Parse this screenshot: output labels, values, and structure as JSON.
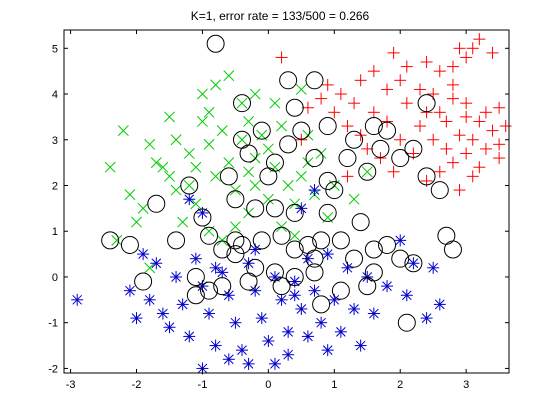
{
  "chart_data": {
    "type": "scatter",
    "title": "K=1, error rate = 133/500 = 0.266",
    "xlabel": "",
    "ylabel": "",
    "xlim": [
      -3.1,
      3.65
    ],
    "ylim": [
      -2.1,
      5.4
    ],
    "xticks": [
      -3,
      -2,
      -1,
      0,
      1,
      2,
      3
    ],
    "yticks": [
      -2,
      -1,
      0,
      1,
      2,
      3,
      4,
      5
    ],
    "grid": false,
    "legend": "none",
    "series": [
      {
        "marker": "plus",
        "color": "#ff0000",
        "points": [
          [
            0.2,
            4.8
          ],
          [
            0.9,
            4.2
          ],
          [
            1.4,
            4.3
          ],
          [
            1.6,
            4.5
          ],
          [
            1.8,
            4.1
          ],
          [
            2.0,
            4.3
          ],
          [
            2.1,
            3.8
          ],
          [
            2.3,
            4.1
          ],
          [
            2.4,
            3.6
          ],
          [
            2.5,
            4.0
          ],
          [
            2.6,
            3.6
          ],
          [
            2.7,
            3.4
          ],
          [
            2.8,
            3.9
          ],
          [
            2.9,
            3.1
          ],
          [
            3.0,
            3.5
          ],
          [
            3.1,
            3.0
          ],
          [
            3.2,
            3.4
          ],
          [
            3.3,
            2.8
          ],
          [
            3.4,
            3.2
          ],
          [
            3.5,
            2.9
          ],
          [
            3.6,
            3.3
          ],
          [
            3.5,
            2.6
          ],
          [
            3.2,
            2.4
          ],
          [
            3.0,
            2.7
          ],
          [
            2.8,
            2.5
          ],
          [
            2.6,
            2.3
          ],
          [
            2.9,
            1.9
          ],
          [
            3.1,
            2.2
          ],
          [
            2.6,
            4.5
          ],
          [
            2.8,
            4.6
          ],
          [
            3.0,
            4.8
          ],
          [
            3.2,
            5.2
          ],
          [
            3.1,
            5.0
          ],
          [
            2.9,
            5.0
          ],
          [
            3.4,
            4.9
          ],
          [
            2.4,
            4.7
          ],
          [
            2.1,
            4.6
          ],
          [
            1.9,
            4.9
          ],
          [
            2.3,
            3.3
          ],
          [
            2.0,
            3.0
          ],
          [
            1.8,
            3.4
          ],
          [
            1.6,
            3.6
          ],
          [
            1.4,
            3.1
          ],
          [
            1.2,
            3.3
          ],
          [
            1.0,
            3.6
          ],
          [
            0.8,
            3.9
          ],
          [
            1.1,
            4.0
          ],
          [
            1.3,
            3.8
          ],
          [
            2.5,
            3.0
          ],
          [
            2.7,
            2.8
          ],
          [
            3.3,
            3.6
          ],
          [
            3.5,
            3.7
          ],
          [
            3.0,
            3.8
          ],
          [
            1.9,
            2.3
          ],
          [
            1.7,
            2.6
          ],
          [
            1.5,
            2.8
          ],
          [
            2.2,
            2.7
          ],
          [
            2.4,
            2.1
          ],
          [
            0.6,
            3.7
          ],
          [
            0.5,
            3.0
          ],
          [
            1.2,
            2.2
          ],
          [
            2.8,
            4.2
          ]
        ]
      },
      {
        "marker": "x",
        "color": "#00cc00",
        "points": [
          [
            -2.4,
            2.4
          ],
          [
            -2.2,
            3.2
          ],
          [
            -2.1,
            1.8
          ],
          [
            -1.9,
            1.5
          ],
          [
            -1.8,
            2.9
          ],
          [
            -1.7,
            2.5
          ],
          [
            -1.5,
            2.2
          ],
          [
            -1.4,
            3.0
          ],
          [
            -1.3,
            1.2
          ],
          [
            -1.2,
            2.7
          ],
          [
            -1.1,
            2.4
          ],
          [
            -1.0,
            3.4
          ],
          [
            -0.9,
            2.9
          ],
          [
            -0.8,
            2.2
          ],
          [
            -0.7,
            3.2
          ],
          [
            -0.6,
            2.5
          ],
          [
            -0.5,
            1.9
          ],
          [
            -0.4,
            3.0
          ],
          [
            -0.3,
            2.3
          ],
          [
            -0.2,
            2.6
          ],
          [
            -0.1,
            3.1
          ],
          [
            0.0,
            2.8
          ],
          [
            0.1,
            2.4
          ],
          [
            0.2,
            3.3
          ],
          [
            0.3,
            2.0
          ],
          [
            0.4,
            1.6
          ],
          [
            0.5,
            2.2
          ],
          [
            0.6,
            2.5
          ],
          [
            0.7,
            1.8
          ],
          [
            0.8,
            2.7
          ],
          [
            0.9,
            1.3
          ],
          [
            1.0,
            2.0
          ],
          [
            -0.9,
            3.6
          ],
          [
            -0.8,
            4.2
          ],
          [
            -0.6,
            4.4
          ],
          [
            -0.4,
            3.8
          ],
          [
            -0.2,
            4.0
          ],
          [
            -1.0,
            4.0
          ],
          [
            -1.2,
            2.0
          ],
          [
            -1.4,
            1.9
          ],
          [
            -1.6,
            2.4
          ],
          [
            -1.1,
            1.6
          ],
          [
            -0.9,
            1.0
          ],
          [
            -0.7,
            0.8
          ],
          [
            -0.5,
            1.1
          ],
          [
            -0.3,
            1.4
          ],
          [
            0.0,
            1.7
          ],
          [
            0.2,
            1.1
          ],
          [
            0.4,
            0.9
          ],
          [
            -2.3,
            0.8
          ],
          [
            -1.8,
            0.2
          ],
          [
            -0.2,
            2.0
          ],
          [
            0.6,
            3.1
          ],
          [
            1.3,
            1.7
          ],
          [
            1.5,
            2.3
          ],
          [
            -1.5,
            3.5
          ],
          [
            -0.3,
            3.4
          ],
          [
            0.1,
            3.8
          ],
          [
            0.5,
            4.1
          ],
          [
            -2.0,
            1.2
          ]
        ]
      },
      {
        "marker": "asterisk",
        "color": "#0000cc",
        "points": [
          [
            -2.9,
            -0.5
          ],
          [
            -2.1,
            -0.3
          ],
          [
            -2.0,
            -0.9
          ],
          [
            -1.9,
            0.5
          ],
          [
            -1.8,
            -0.5
          ],
          [
            -1.7,
            0.3
          ],
          [
            -1.6,
            -0.8
          ],
          [
            -1.5,
            -1.1
          ],
          [
            -1.4,
            0.0
          ],
          [
            -1.3,
            -0.6
          ],
          [
            -1.2,
            -1.3
          ],
          [
            -1.1,
            0.4
          ],
          [
            -1.0,
            -0.2
          ],
          [
            -0.9,
            -0.8
          ],
          [
            -0.8,
            -1.5
          ],
          [
            -0.7,
            0.1
          ],
          [
            -0.6,
            -0.4
          ],
          [
            -0.5,
            -1.0
          ],
          [
            -0.4,
            -1.6
          ],
          [
            -0.3,
            0.3
          ],
          [
            -0.2,
            -0.3
          ],
          [
            -0.1,
            -0.9
          ],
          [
            0.0,
            -1.4
          ],
          [
            0.1,
            -1.9
          ],
          [
            0.2,
            -0.5
          ],
          [
            0.3,
            -1.2
          ],
          [
            0.4,
            -0.1
          ],
          [
            0.5,
            -0.7
          ],
          [
            0.6,
            -1.3
          ],
          [
            0.7,
            -0.3
          ],
          [
            0.8,
            -1.0
          ],
          [
            0.9,
            -1.6
          ],
          [
            1.0,
            -0.5
          ],
          [
            1.1,
            -1.2
          ],
          [
            1.2,
            0.2
          ],
          [
            1.3,
            -0.7
          ],
          [
            1.4,
            -1.5
          ],
          [
            1.5,
            0.0
          ],
          [
            1.6,
            -0.8
          ],
          [
            1.8,
            -0.2
          ],
          [
            2.0,
            0.8
          ],
          [
            2.1,
            -0.4
          ],
          [
            2.2,
            0.3
          ],
          [
            2.4,
            -0.9
          ],
          [
            2.5,
            0.2
          ],
          [
            2.6,
            -0.6
          ],
          [
            -1.0,
            -2.0
          ],
          [
            -0.3,
            -1.9
          ],
          [
            0.3,
            -1.7
          ],
          [
            -0.6,
            -1.8
          ],
          [
            0.7,
            1.9
          ],
          [
            0.5,
            1.5
          ],
          [
            0.9,
            0.5
          ],
          [
            -0.2,
            0.6
          ],
          [
            -0.8,
            0.2
          ],
          [
            0.1,
            0.0
          ],
          [
            0.6,
            0.4
          ],
          [
            -1.2,
            1.7
          ],
          [
            -1.0,
            1.4
          ],
          [
            0.4,
            -0.4
          ]
        ]
      },
      {
        "marker": "circle",
        "color": "#000000",
        "points": [
          [
            -0.8,
            5.1
          ],
          [
            0.3,
            4.3
          ],
          [
            0.7,
            4.3
          ],
          [
            -0.4,
            3.8
          ],
          [
            0.4,
            3.7
          ],
          [
            -0.4,
            3.0
          ],
          [
            -1.2,
            2.0
          ],
          [
            -1.7,
            1.6
          ],
          [
            -2.4,
            0.8
          ],
          [
            -2.1,
            0.7
          ],
          [
            -1.4,
            0.8
          ],
          [
            -0.9,
            0.9
          ],
          [
            -0.7,
            0.6
          ],
          [
            -0.5,
            0.8
          ],
          [
            -0.4,
            0.7
          ],
          [
            -0.1,
            0.8
          ],
          [
            0.2,
            0.9
          ],
          [
            0.4,
            0.6
          ],
          [
            0.6,
            0.7
          ],
          [
            0.8,
            0.8
          ],
          [
            1.1,
            0.8
          ],
          [
            1.3,
            0.4
          ],
          [
            1.6,
            0.6
          ],
          [
            1.8,
            0.7
          ],
          [
            2.2,
            0.3
          ],
          [
            2.7,
            0.9
          ],
          [
            2.8,
            0.6
          ],
          [
            0.1,
            2.5
          ],
          [
            0.3,
            2.9
          ],
          [
            0.7,
            2.6
          ],
          [
            0.9,
            2.1
          ],
          [
            1.2,
            2.6
          ],
          [
            1.5,
            2.3
          ],
          [
            1.7,
            2.8
          ],
          [
            2.0,
            2.6
          ],
          [
            2.2,
            2.8
          ],
          [
            2.4,
            2.2
          ],
          [
            2.6,
            1.9
          ],
          [
            2.4,
            3.8
          ],
          [
            1.8,
            3.2
          ],
          [
            1.6,
            3.3
          ],
          [
            1.3,
            3.0
          ],
          [
            0.9,
            3.3
          ],
          [
            0.5,
            3.2
          ],
          [
            -0.1,
            3.2
          ],
          [
            -0.3,
            2.7
          ],
          [
            0.0,
            2.2
          ],
          [
            -0.5,
            1.7
          ],
          [
            -1.0,
            1.3
          ],
          [
            -0.2,
            1.5
          ],
          [
            0.1,
            1.5
          ],
          [
            0.4,
            1.4
          ],
          [
            0.9,
            1.4
          ],
          [
            1.4,
            1.2
          ],
          [
            -1.1,
            0.0
          ],
          [
            -0.7,
            -0.2
          ],
          [
            -0.2,
            0.2
          ],
          [
            0.1,
            0.1
          ],
          [
            0.4,
            0.0
          ],
          [
            0.7,
            0.1
          ],
          [
            -0.9,
            -0.3
          ],
          [
            -1.9,
            -0.1
          ],
          [
            -1.1,
            -0.4
          ],
          [
            -0.3,
            -0.1
          ],
          [
            0.2,
            -0.2
          ],
          [
            1.1,
            -0.3
          ],
          [
            1.5,
            -0.2
          ],
          [
            2.1,
            -1.0
          ],
          [
            0.8,
            -0.6
          ],
          [
            -0.5,
            0.5
          ],
          [
            2.0,
            0.4
          ],
          [
            -0.6,
            2.2
          ],
          [
            1.0,
            1.9
          ],
          [
            0.7,
            0.4
          ],
          [
            1.6,
            0.1
          ]
        ]
      }
    ]
  }
}
